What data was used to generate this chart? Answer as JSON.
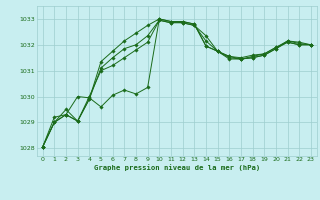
{
  "title": "Graphe pression niveau de la mer (hPa)",
  "background_color": "#c8eef0",
  "grid_color": "#9ecece",
  "line_color": "#1a6b1a",
  "xlim": [
    -0.5,
    23.5
  ],
  "ylim": [
    1027.7,
    1033.5
  ],
  "yticks": [
    1028,
    1029,
    1030,
    1031,
    1032,
    1033
  ],
  "xticks": [
    0,
    1,
    2,
    3,
    4,
    5,
    6,
    7,
    8,
    9,
    10,
    11,
    12,
    13,
    14,
    15,
    16,
    17,
    18,
    19,
    20,
    21,
    22,
    23
  ],
  "series": [
    [
      1028.05,
      1029.0,
      1029.3,
      1029.05,
      1029.9,
      1031.1,
      1031.5,
      1031.85,
      1032.0,
      1032.35,
      1032.95,
      1032.85,
      1032.85,
      1032.75,
      1032.15,
      1031.75,
      1031.55,
      1031.45,
      1031.5,
      1031.6,
      1031.85,
      1032.1,
      1032.0,
      1032.0
    ],
    [
      1028.05,
      1029.0,
      1029.3,
      1029.05,
      1029.9,
      1031.35,
      1031.75,
      1032.15,
      1032.45,
      1032.75,
      1033.0,
      1032.9,
      1032.85,
      1032.75,
      1032.35,
      1031.75,
      1031.45,
      1031.45,
      1031.5,
      1031.6,
      1031.85,
      1032.15,
      1032.05,
      1032.0
    ],
    [
      1028.05,
      1029.0,
      1029.5,
      1029.05,
      1030.0,
      1031.0,
      1031.2,
      1031.5,
      1031.8,
      1032.1,
      1032.95,
      1032.85,
      1032.9,
      1032.8,
      1031.95,
      1031.75,
      1031.5,
      1031.45,
      1031.55,
      1031.65,
      1031.9,
      1032.1,
      1032.0,
      1032.0
    ],
    [
      1028.05,
      1029.2,
      1029.3,
      1030.0,
      1029.95,
      1029.6,
      1030.05,
      1030.25,
      1030.1,
      1030.35,
      1033.0,
      1032.9,
      1032.9,
      1032.8,
      1031.95,
      1031.75,
      1031.55,
      1031.5,
      1031.6,
      1031.65,
      1031.9,
      1032.15,
      1032.1,
      1032.0
    ]
  ]
}
